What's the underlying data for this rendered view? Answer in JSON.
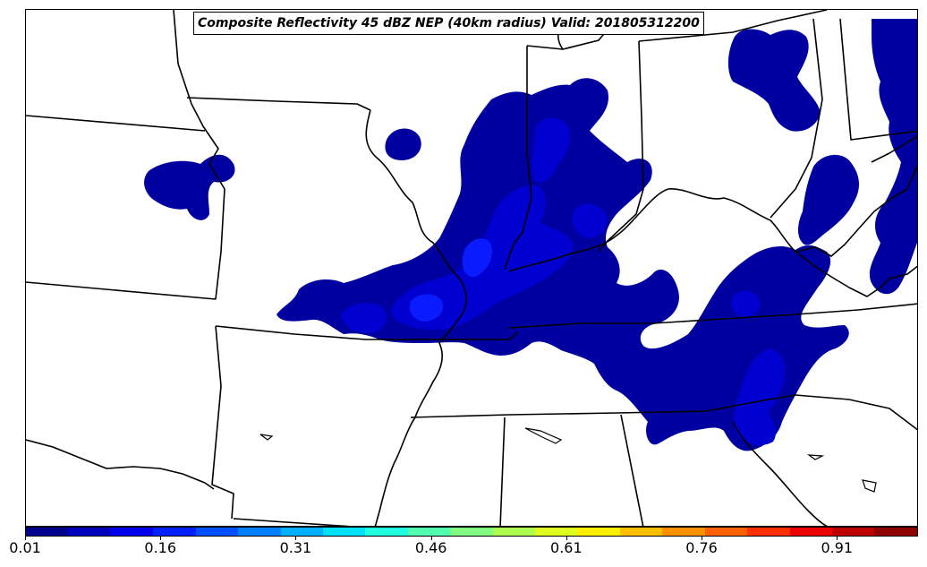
{
  "title": "Composite Reflectivity 45 dBZ NEP (40km radius) Valid: 201805312200",
  "colorbar": {
    "ticks": [
      "0.01",
      "0.16",
      "0.31",
      "0.46",
      "0.61",
      "0.76",
      "0.91"
    ],
    "tick_values": [
      0.01,
      0.16,
      0.31,
      0.46,
      0.61,
      0.76,
      0.91
    ],
    "range": [
      0.01,
      1.0
    ],
    "colors": [
      "#00008f",
      "#0000bf",
      "#0000ef",
      "#0020ff",
      "#0050ff",
      "#0080ff",
      "#00b0ff",
      "#00e0ff",
      "#20ffdf",
      "#50ffaf",
      "#80ff80",
      "#afff50",
      "#dfff20",
      "#ffef00",
      "#ffbf00",
      "#ff9000",
      "#ff6000",
      "#ff3000",
      "#ef0000",
      "#bf0000",
      "#8f0000"
    ]
  },
  "colors": {
    "prob_low": "#0000a0",
    "prob_mid": "#0000cf",
    "prob_high": "#0a1cff",
    "state_lines": "#000000",
    "background": "#ffffff"
  }
}
